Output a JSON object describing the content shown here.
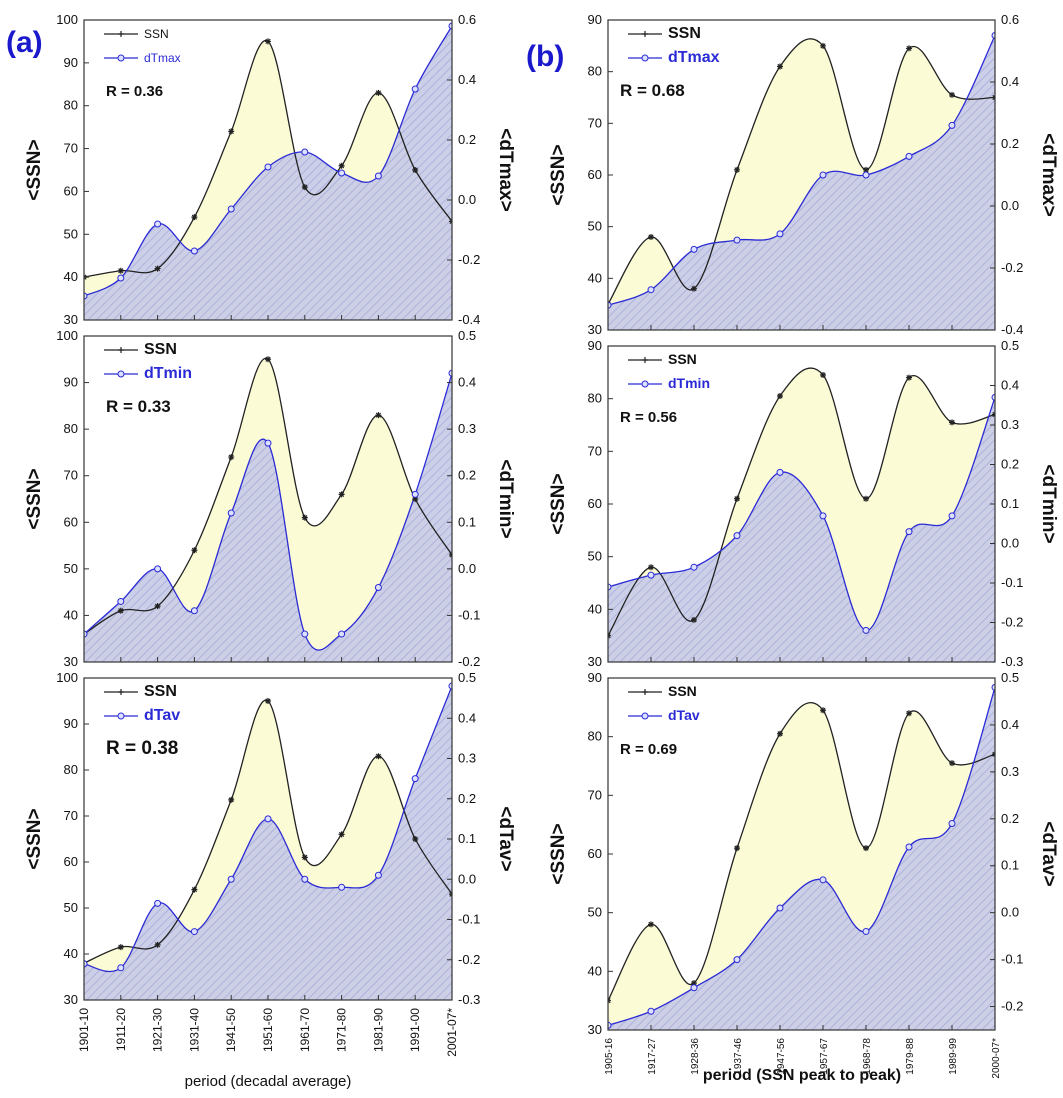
{
  "figure": {
    "panel_a_label": "(a)",
    "panel_b_label": "(b)",
    "xlabel_a": "period (decadal average)",
    "xlabel_b": "period (SSN peak to peak)"
  },
  "colors": {
    "ssn_line": "#222222",
    "dt_line": "#2b2bd6",
    "panel_label": "#1a1acc",
    "ssn_fill": "#fbfbd6",
    "dt_fill": "#c8cbe6"
  },
  "chart_data": [
    {
      "id": "a1",
      "type": "line",
      "categories": [
        "1901-10",
        "1911-20",
        "1921-30",
        "1931-40",
        "1941-50",
        "1951-60",
        "1961-70",
        "1971-80",
        "1981-90",
        "1991-00",
        "2001-07*"
      ],
      "show_xticks": false,
      "ylabel_left": "<SSN>",
      "ylabel_right": "<dTmax>",
      "ylim_left": [
        30,
        100
      ],
      "yticks_left": [
        30,
        40,
        50,
        60,
        70,
        80,
        90,
        100
      ],
      "ylim_right": [
        -0.4,
        0.6
      ],
      "yticks_right": [
        "-0.4",
        "-0.2",
        "0.0",
        "0.2",
        "0.4",
        "0.6"
      ],
      "legend": "top-left",
      "annotation": "R = 0.36",
      "series": [
        {
          "name": "SSN",
          "axis": "left",
          "values": [
            40,
            41.5,
            42,
            54,
            74,
            95,
            61,
            66,
            83,
            65,
            53
          ]
        },
        {
          "name": "dTmax",
          "axis": "right",
          "values": [
            -0.32,
            -0.26,
            -0.08,
            -0.17,
            -0.03,
            0.11,
            0.16,
            0.09,
            0.08,
            0.37,
            0.58
          ]
        }
      ]
    },
    {
      "id": "a2",
      "type": "line",
      "categories": [
        "1901-10",
        "1911-20",
        "1921-30",
        "1931-40",
        "1941-50",
        "1951-60",
        "1961-70",
        "1971-80",
        "1981-90",
        "1991-00",
        "2001-07*"
      ],
      "show_xticks": false,
      "ylabel_left": "<SSN>",
      "ylabel_right": "<dTmin>",
      "ylim_left": [
        30,
        100
      ],
      "yticks_left": [
        30,
        40,
        50,
        60,
        70,
        80,
        90,
        100
      ],
      "ylim_right": [
        -0.2,
        0.5
      ],
      "yticks_right": [
        "-0.2",
        "-0.1",
        "0.0",
        "0.1",
        "0.2",
        "0.3",
        "0.4",
        "0.5"
      ],
      "legend": "top-left",
      "annotation": "R = 0.33",
      "series": [
        {
          "name": "SSN",
          "axis": "left",
          "values": [
            36,
            41,
            42,
            54,
            74,
            95,
            61,
            66,
            83,
            65,
            53
          ]
        },
        {
          "name": "dTmin",
          "axis": "right",
          "values": [
            -0.14,
            -0.07,
            0.0,
            -0.09,
            0.12,
            0.27,
            -0.14,
            -0.14,
            -0.04,
            0.16,
            0.42
          ]
        }
      ]
    },
    {
      "id": "a3",
      "type": "line",
      "categories": [
        "1901-10",
        "1911-20",
        "1921-30",
        "1931-40",
        "1941-50",
        "1951-60",
        "1961-70",
        "1971-80",
        "1981-90",
        "1991-00",
        "2001-07*"
      ],
      "show_xticks": true,
      "ylabel_left": "<SSN>",
      "ylabel_right": "<dTav>",
      "ylim_left": [
        30,
        100
      ],
      "yticks_left": [
        30,
        40,
        50,
        60,
        70,
        80,
        90,
        100
      ],
      "ylim_right": [
        -0.3,
        0.5
      ],
      "yticks_right": [
        "-0.3",
        "-0.2",
        "-0.1",
        "0.0",
        "0.1",
        "0.2",
        "0.3",
        "0.4",
        "0.5"
      ],
      "legend": "top-left",
      "annotation": "R = 0.38",
      "series": [
        {
          "name": "SSN",
          "axis": "left",
          "values": [
            38,
            41.5,
            42,
            54,
            73.5,
            95,
            61,
            66,
            83,
            65,
            53
          ]
        },
        {
          "name": "dTav",
          "axis": "right",
          "values": [
            -0.21,
            -0.22,
            -0.06,
            -0.13,
            0.0,
            0.15,
            0.0,
            -0.02,
            0.01,
            0.25,
            0.48
          ]
        }
      ]
    },
    {
      "id": "b1",
      "type": "line",
      "categories": [
        "1905-16",
        "1917-27",
        "1928-36",
        "1937-46",
        "1947-56",
        "1957-67",
        "1968-78",
        "1979-88",
        "1989-99",
        "2000-07*"
      ],
      "show_xticks": false,
      "ylabel_left": "<SSN>",
      "ylabel_right": "<dTmax>",
      "ylim_left": [
        30,
        90
      ],
      "yticks_left": [
        30,
        40,
        50,
        60,
        70,
        80,
        90
      ],
      "ylim_right": [
        -0.4,
        0.6
      ],
      "yticks_right": [
        "-0.4",
        "-0.2",
        "0.0",
        "0.2",
        "0.4",
        "0.6"
      ],
      "legend": "top-left",
      "annotation": "R = 0.68",
      "series": [
        {
          "name": "SSN",
          "axis": "left",
          "values": [
            35,
            48,
            38,
            61,
            81,
            85,
            61,
            84.5,
            75.5,
            75
          ]
        },
        {
          "name": "dTmax",
          "axis": "right",
          "values": [
            -0.32,
            -0.27,
            -0.14,
            -0.11,
            -0.09,
            0.1,
            0.1,
            0.16,
            0.26,
            0.55
          ]
        }
      ]
    },
    {
      "id": "b2",
      "type": "line",
      "categories": [
        "1905-16",
        "1917-27",
        "1928-36",
        "1937-46",
        "1947-56",
        "1957-67",
        "1968-78",
        "1979-88",
        "1989-99",
        "2000-07*"
      ],
      "show_xticks": false,
      "ylabel_left": "<SSN>",
      "ylabel_right": "<dTmin>",
      "ylim_left": [
        30,
        90
      ],
      "yticks_left": [
        30,
        40,
        50,
        60,
        70,
        80,
        90
      ],
      "ylim_right": [
        -0.3,
        0.5
      ],
      "yticks_right": [
        "-0.3",
        "-0.2",
        "-0.1",
        "0.0",
        "0.1",
        "0.2",
        "0.3",
        "0.4",
        "0.5"
      ],
      "legend": "top-left",
      "annotation": "R = 0.56",
      "series": [
        {
          "name": "SSN",
          "axis": "left",
          "values": [
            35,
            48,
            38,
            61,
            80.5,
            84.5,
            61,
            84,
            75.5,
            77
          ]
        },
        {
          "name": "dTmin",
          "axis": "right",
          "values": [
            -0.11,
            -0.08,
            -0.06,
            0.02,
            0.18,
            0.07,
            -0.22,
            0.03,
            0.07,
            0.37
          ]
        }
      ]
    },
    {
      "id": "b3",
      "type": "line",
      "categories": [
        "1905-16",
        "1917-27",
        "1928-36",
        "1937-46",
        "1947-56",
        "1957-67",
        "1968-78",
        "1979-88",
        "1989-99",
        "2000-07*"
      ],
      "show_xticks": true,
      "ylabel_left": "<SSN>",
      "ylabel_right": "<dTav>",
      "ylim_left": [
        30,
        90
      ],
      "yticks_left": [
        30,
        40,
        50,
        60,
        70,
        80,
        90
      ],
      "ylim_right": [
        -0.25,
        0.5
      ],
      "yticks_right": [
        "-0.2",
        "-0.1",
        "0.0",
        "0.1",
        "0.2",
        "0.3",
        "0.4",
        "0.5"
      ],
      "legend": "top-left",
      "annotation": "R = 0.69",
      "series": [
        {
          "name": "SSN",
          "axis": "left",
          "values": [
            35,
            48,
            38,
            61,
            80.5,
            84.5,
            61,
            84,
            75.5,
            77
          ]
        },
        {
          "name": "dTav",
          "axis": "right",
          "values": [
            -0.24,
            -0.21,
            -0.16,
            -0.1,
            0.01,
            0.07,
            -0.04,
            0.14,
            0.19,
            0.48
          ]
        }
      ]
    }
  ]
}
